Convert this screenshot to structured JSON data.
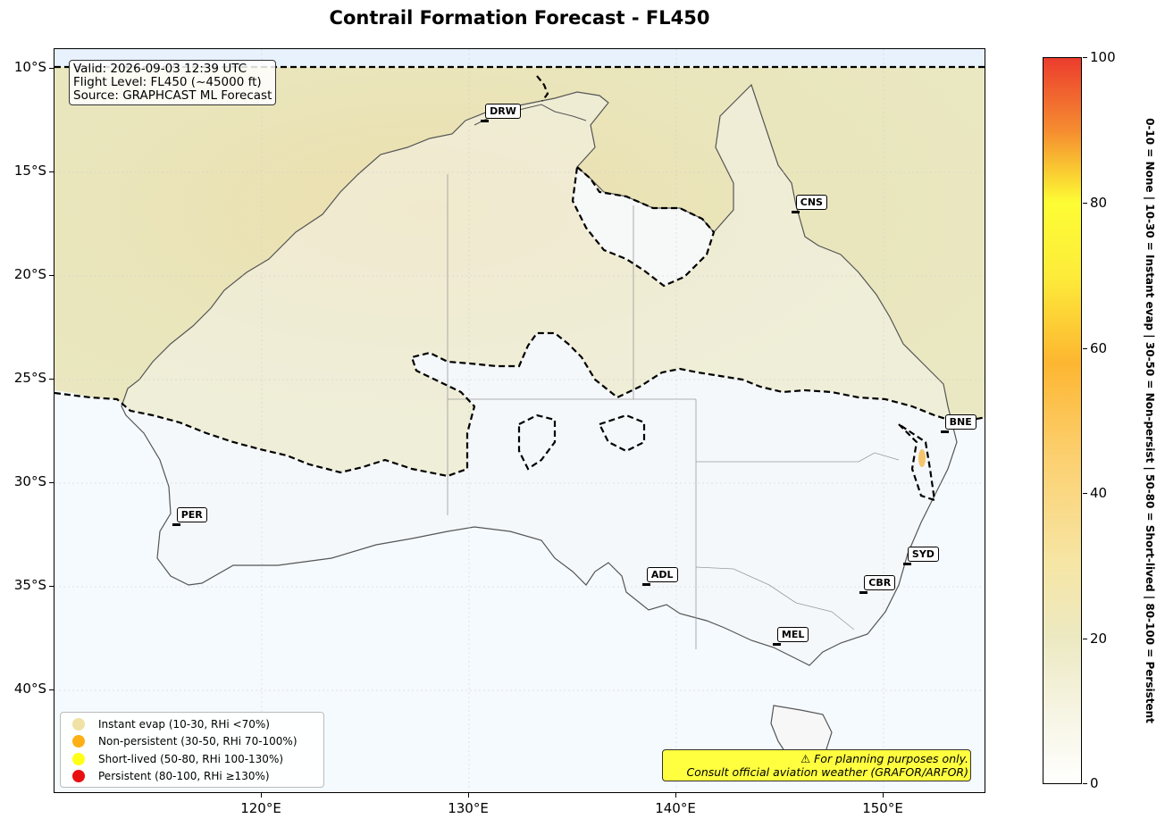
{
  "title": "Contrail Formation Forecast - FL450",
  "info": {
    "valid": "Valid: 2026-09-03 12:39 UTC",
    "flight_level": "Flight Level: FL450 (~45000 ft)",
    "source": "Source: GRAPHCAST ML Forecast"
  },
  "y_ticks": [
    "10°S",
    "15°S",
    "20°S",
    "25°S",
    "30°S",
    "35°S",
    "40°S"
  ],
  "x_ticks": [
    "120°E",
    "130°E",
    "140°E",
    "150°E"
  ],
  "cities": [
    {
      "code": "DRW",
      "lon": 130.8,
      "lat": -12.5
    },
    {
      "code": "CNS",
      "lon": 145.8,
      "lat": -16.9
    },
    {
      "code": "BNE",
      "lon": 153.0,
      "lat": -27.5
    },
    {
      "code": "PER",
      "lon": 115.9,
      "lat": -32.0
    },
    {
      "code": "SYD",
      "lon": 151.2,
      "lat": -33.9
    },
    {
      "code": "CBR",
      "lon": 149.1,
      "lat": -35.3
    },
    {
      "code": "ADL",
      "lon": 138.6,
      "lat": -34.9
    },
    {
      "code": "MEL",
      "lon": 144.9,
      "lat": -37.8
    }
  ],
  "legend": [
    {
      "label": "Instant evap (10-30, RHi <70%)",
      "color": "#f0e2a4"
    },
    {
      "label": "Non-persistent (30-50, RHi 70-100%)",
      "color": "#fdb015"
    },
    {
      "label": "Short-lived (50-80, RHi 100-130%)",
      "color": "#ffff18"
    },
    {
      "label": "Persistent (80-100, RHi ≥130%)",
      "color": "#e81010"
    }
  ],
  "warning": {
    "line1": "⚠ For planning purposes only.",
    "line2": "Consult official aviation weather (GRAFOR/ARFOR)"
  },
  "colorbar": {
    "min": 0,
    "max": 100,
    "ticks": [
      "0",
      "20",
      "40",
      "60",
      "80",
      "100"
    ],
    "side_label": "0-10 = None  |  10-30 = Instant evap  |  30-50 = Non-persist  |  50-80 = Short-lived  |  80-100 = Persistent"
  },
  "map_extent": {
    "lon": [
      110,
      155
    ],
    "lat": [
      -45,
      -9
    ]
  }
}
